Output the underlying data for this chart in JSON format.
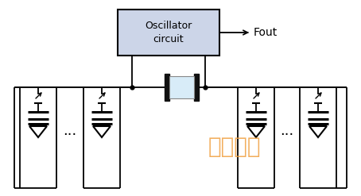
{
  "bg_color": "#ffffff",
  "box_color": "#ccd5e8",
  "box_edge_color": "#000000",
  "line_color": "#000000",
  "resonator_fill": "#d8ecf8",
  "fout_label": "Fout",
  "osc_label_line1": "Oscillator",
  "osc_label_line2": "circuit",
  "watermark_text": "统一电子",
  "watermark_color": "#f0a040",
  "osc_fontsize": 9,
  "fout_fontsize": 10,
  "watermark_fontsize": 20,
  "lw": 1.3
}
